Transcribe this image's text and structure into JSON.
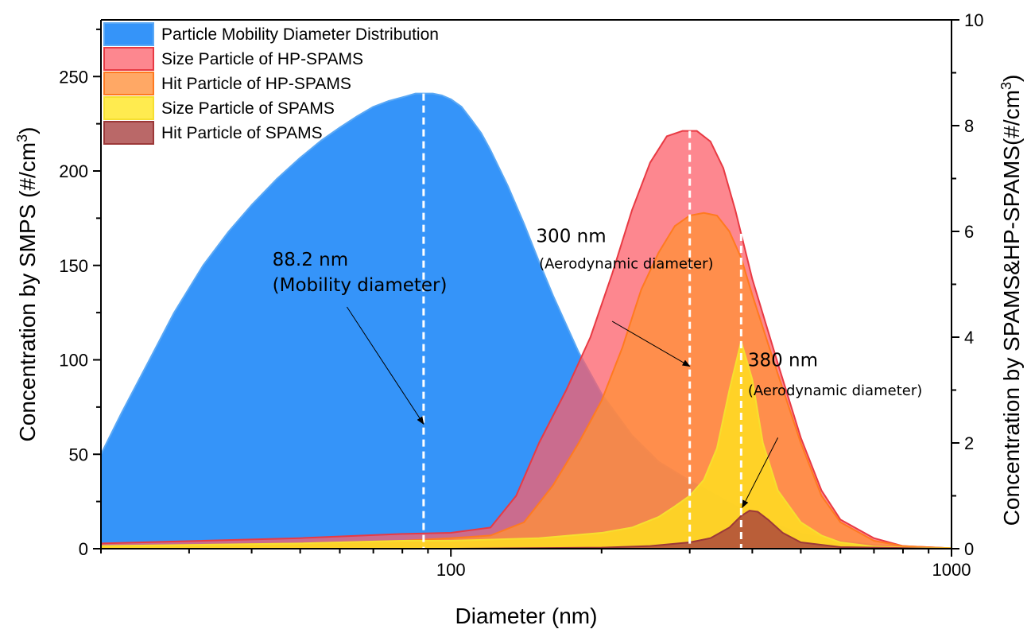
{
  "chart_data": {
    "type": "area",
    "xscale": "log",
    "xlim": [
      20,
      1000
    ],
    "ylim_left": [
      0,
      280
    ],
    "ylim_right": [
      0,
      10
    ],
    "xlabel": "Diameter (nm)",
    "ylabel_left": {
      "text": "Concentration by SMPS (#/cm",
      "sup": "3",
      "tail": ")"
    },
    "ylabel_right": {
      "text": "Concentration by SPAMS&HP-SPAMS(#/cm",
      "sup": "3",
      "tail": ")"
    },
    "x_ticks": [
      {
        "value": 100,
        "label": "100"
      },
      {
        "value": 1000,
        "label": "1000"
      }
    ],
    "y_left_ticks": [
      {
        "value": 0,
        "label": "0"
      },
      {
        "value": 50,
        "label": "50"
      },
      {
        "value": 100,
        "label": "100"
      },
      {
        "value": 150,
        "label": "150"
      },
      {
        "value": 200,
        "label": "200"
      },
      {
        "value": 250,
        "label": "250"
      }
    ],
    "y_right_ticks": [
      {
        "value": 0,
        "label": "0"
      },
      {
        "value": 2,
        "label": "2"
      },
      {
        "value": 4,
        "label": "4"
      },
      {
        "value": 6,
        "label": "6"
      },
      {
        "value": 8,
        "label": "8"
      },
      {
        "value": 10,
        "label": "10"
      }
    ],
    "legend_position": "top-left",
    "series": [
      {
        "name": "Particle Mobility Diameter Distribution",
        "axis": "left",
        "fill": "#1f88f8",
        "stroke": "#5aa8f5",
        "opacity": 0.9,
        "x": [
          20,
          22,
          25,
          28,
          32,
          36,
          40,
          45,
          50,
          55,
          60,
          65,
          70,
          75,
          80,
          85,
          88.2,
          92,
          96,
          100,
          105,
          110,
          115,
          120,
          130,
          140,
          150,
          160,
          180,
          200,
          230,
          260,
          300,
          340,
          380,
          430,
          500,
          600,
          700,
          800,
          900,
          1000
        ],
        "y": [
          50,
          72,
          100,
          125,
          150,
          168,
          182,
          196,
          207,
          216,
          223,
          229,
          234,
          237,
          239,
          241,
          241,
          241,
          240,
          238,
          234,
          227,
          220,
          211,
          192,
          172,
          152,
          134,
          104,
          82,
          60,
          46,
          36,
          28,
          21,
          14,
          8,
          4,
          2,
          1,
          0.5,
          0
        ]
      },
      {
        "name": "Size Particle of HP-SPAMS",
        "axis": "right",
        "fill": "#fc5f6a",
        "stroke": "#e83a43",
        "opacity": 0.75,
        "x": [
          20,
          50,
          80,
          100,
          120,
          135,
          150,
          170,
          190,
          210,
          230,
          250,
          270,
          290,
          310,
          330,
          350,
          370,
          400,
          450,
          500,
          550,
          600,
          700,
          800,
          1000
        ],
        "y": [
          0.1,
          0.2,
          0.28,
          0.3,
          0.4,
          1.0,
          2.0,
          3.0,
          4.0,
          5.2,
          6.4,
          7.3,
          7.8,
          7.9,
          7.9,
          7.7,
          7.2,
          6.4,
          5.1,
          3.5,
          2.1,
          1.1,
          0.55,
          0.2,
          0.05,
          0.01
        ]
      },
      {
        "name": "Hit Particle of HP-SPAMS",
        "axis": "right",
        "fill": "#ff8f3a",
        "stroke": "#ff7a20",
        "opacity": 0.78,
        "x": [
          20,
          50,
          80,
          100,
          120,
          140,
          160,
          180,
          200,
          220,
          240,
          260,
          280,
          300,
          320,
          340,
          360,
          380,
          400,
          450,
          500,
          550,
          600,
          700,
          800,
          1000
        ],
        "y": [
          0.05,
          0.1,
          0.15,
          0.2,
          0.25,
          0.5,
          1.2,
          2.0,
          2.8,
          3.8,
          4.9,
          5.6,
          6.1,
          6.3,
          6.35,
          6.3,
          6.0,
          5.5,
          4.8,
          3.3,
          2.0,
          1.0,
          0.5,
          0.15,
          0.05,
          0.01
        ]
      },
      {
        "name": "Size Particle of SPAMS",
        "axis": "right",
        "fill": "#ffe61d",
        "stroke": "#f6df30",
        "opacity": 0.78,
        "x": [
          20,
          50,
          80,
          100,
          150,
          200,
          230,
          260,
          280,
          300,
          320,
          340,
          360,
          380,
          400,
          420,
          450,
          500,
          550,
          600,
          700,
          800,
          1000
        ],
        "y": [
          0.05,
          0.1,
          0.15,
          0.15,
          0.2,
          0.3,
          0.4,
          0.6,
          0.8,
          1.0,
          1.3,
          1.9,
          3.0,
          3.92,
          3.2,
          2.0,
          1.1,
          0.5,
          0.25,
          0.12,
          0.04,
          0.02,
          0.01
        ]
      },
      {
        "name": "Hit Particle of SPAMS",
        "axis": "right",
        "fill": "#a63d3d",
        "stroke": "#9c3838",
        "opacity": 0.78,
        "x": [
          20,
          100,
          200,
          250,
          300,
          330,
          360,
          380,
          395,
          410,
          430,
          460,
          500,
          600,
          1000
        ],
        "y": [
          0,
          0,
          0.02,
          0.05,
          0.12,
          0.2,
          0.4,
          0.62,
          0.72,
          0.7,
          0.55,
          0.3,
          0.12,
          0.03,
          0
        ]
      }
    ],
    "reference_lines": [
      {
        "x": 88.2,
        "color": "#ffffff",
        "style": "dashed"
      },
      {
        "x": 300,
        "color": "#ffffff",
        "style": "dashed"
      },
      {
        "x": 380,
        "color": "#ffffff",
        "style": "dashed"
      }
    ],
    "annotations": [
      {
        "label": "88.2 nm",
        "sublabel": "(Mobility diameter)",
        "text_at": [
          44,
          150
        ],
        "arrow_from": [
          62,
          128
        ],
        "arrow_to": [
          88.2,
          66
        ]
      },
      {
        "label": "300 nm",
        "sublabel": "(Aerodynamic diameter)",
        "text_at": [
          148,
          5.8
        ],
        "sublabel_at": [
          150,
          5.3
        ],
        "arrow_from": [
          210,
          4.3
        ],
        "arrow_to": [
          300,
          3.45
        ]
      },
      {
        "label": "380 nm",
        "sublabel": "(Aerodynamic diameter)",
        "text_at": [
          392,
          3.45
        ],
        "sublabel_at": [
          392,
          2.9
        ],
        "arrow_from": [
          450,
          2.1
        ],
        "arrow_to": [
          382,
          0.78
        ]
      }
    ]
  }
}
